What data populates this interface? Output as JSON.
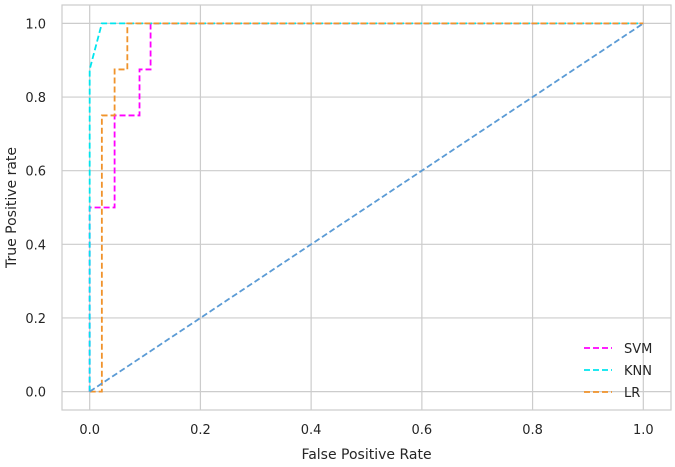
{
  "chart_data": {
    "type": "line",
    "title": "",
    "xlabel": "False Positive Rate",
    "ylabel": "True Positive rate",
    "xlim": [
      -0.05,
      1.05
    ],
    "ylim": [
      -0.05,
      1.05
    ],
    "xticks": [
      0.0,
      0.2,
      0.4,
      0.6,
      0.8,
      1.0
    ],
    "yticks": [
      0.0,
      0.2,
      0.4,
      0.6,
      0.8,
      1.0
    ],
    "xtick_labels": [
      "0.0",
      "0.2",
      "0.4",
      "0.6",
      "0.8",
      "1.0"
    ],
    "ytick_labels": [
      "0.0",
      "0.2",
      "0.4",
      "0.6",
      "0.8",
      "1.0"
    ],
    "grid": true,
    "legend_position": "bottom-right",
    "series": [
      {
        "name": "SVM",
        "color": "#ff00ff",
        "dashed": true,
        "x": [
          0.0,
          0.0,
          0.0,
          0.045,
          0.045,
          0.09,
          0.09,
          0.11,
          0.11,
          1.0
        ],
        "y": [
          0.0,
          0.5,
          0.5,
          0.5,
          0.75,
          0.75,
          0.875,
          0.875,
          1.0,
          1.0
        ]
      },
      {
        "name": "KNN",
        "color": "#00e5ee",
        "dashed": true,
        "x": [
          0.0,
          0.0,
          0.0,
          0.0,
          0.022,
          1.0
        ],
        "y": [
          0.0,
          0.5,
          0.75,
          0.875,
          1.0,
          1.0
        ]
      },
      {
        "name": "LR",
        "color": "#f0932b",
        "dashed": true,
        "x": [
          0.0,
          0.022,
          0.022,
          0.045,
          0.045,
          0.068,
          0.068,
          1.0
        ],
        "y": [
          0.0,
          0.0,
          0.75,
          0.75,
          0.875,
          0.875,
          1.0,
          1.0
        ]
      },
      {
        "color": "#5b9bd5",
        "dashed": true,
        "x": [
          0.0,
          1.0
        ],
        "y": [
          0.0,
          1.0
        ]
      }
    ]
  }
}
